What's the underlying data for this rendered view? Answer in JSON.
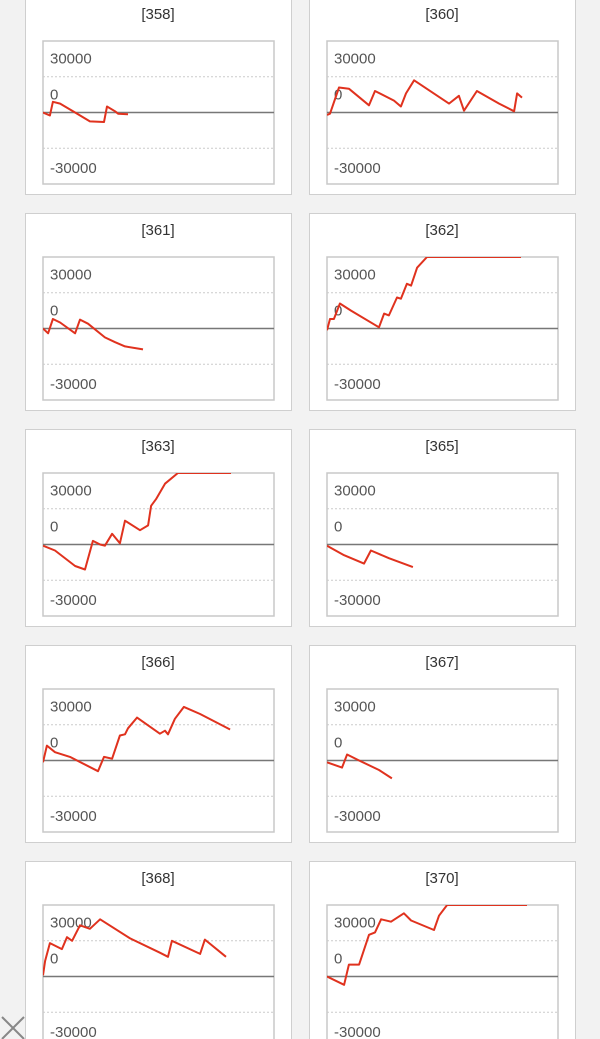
{
  "chart_data": [
    {
      "type": "line",
      "title": "[358]",
      "xlim": [
        0,
        100
      ],
      "ylim": [
        -60000,
        60000
      ],
      "yticks": [
        30000,
        0,
        -30000
      ],
      "color": "#e0321e",
      "x": [
        0,
        3,
        4.3,
        7.4,
        13.9,
        20.3,
        26.4,
        27.7,
        31.2,
        32.5,
        36.8
      ],
      "values": [
        0,
        -2500,
        9000,
        7500,
        0,
        -7500,
        -8000,
        5000,
        1000,
        -1000,
        -1500
      ]
    },
    {
      "type": "line",
      "title": "[360]",
      "xlim": [
        0,
        100
      ],
      "ylim": [
        -60000,
        60000
      ],
      "yticks": [
        30000,
        0,
        -30000
      ],
      "color": "#e0321e",
      "x": [
        0,
        1.3,
        5.2,
        9.5,
        18.2,
        20.8,
        29,
        32,
        34.2,
        37.7,
        52.8,
        57.1,
        59.3,
        64.9,
        74.5,
        81,
        82.3,
        84.4
      ],
      "values": [
        -2000,
        -1000,
        21000,
        20000,
        6000,
        18000,
        10000,
        5000,
        16000,
        27000,
        7500,
        14000,
        1500,
        18000,
        7500,
        1000,
        16000,
        12500
      ]
    },
    {
      "type": "line",
      "title": "[361]",
      "xlim": [
        0,
        100
      ],
      "ylim": [
        -60000,
        60000
      ],
      "yticks": [
        30000,
        0,
        -30000
      ],
      "color": "#e0321e",
      "x": [
        0,
        2.2,
        4.3,
        7.4,
        13.9,
        16,
        19.5,
        26.8,
        31.2,
        35.5,
        43.3
      ],
      "values": [
        0,
        -4000,
        8000,
        5000,
        -4000,
        7500,
        4000,
        -7500,
        -11500,
        -15000,
        -17500
      ]
    },
    {
      "type": "line",
      "title": "[362]",
      "xlim": [
        0,
        100
      ],
      "ylim": [
        -60000,
        60000
      ],
      "yticks": [
        30000,
        0,
        -30000
      ],
      "color": "#e0321e",
      "x": [
        0,
        1.3,
        3,
        5.6,
        10.4,
        22.5,
        24.7,
        26.8,
        30.3,
        32,
        34.6,
        36.4,
        39,
        43.3,
        84
      ],
      "values": [
        -1500,
        8000,
        8000,
        21000,
        15000,
        1000,
        12500,
        11000,
        26000,
        25000,
        37500,
        36000,
        51000,
        60000,
        60000
      ]
    },
    {
      "type": "line",
      "title": "[363]",
      "xlim": [
        0,
        100
      ],
      "ylim": [
        -60000,
        60000
      ],
      "yticks": [
        30000,
        0,
        -30000
      ],
      "color": "#e0321e",
      "x": [
        0,
        5.2,
        13.9,
        18.2,
        21.6,
        24.7,
        26.8,
        29.9,
        33.3,
        35.5,
        42,
        45.5,
        46.8,
        48.9,
        52.8,
        58.4,
        81.4
      ],
      "values": [
        -1000,
        -5000,
        -18000,
        -21000,
        3000,
        0,
        -1000,
        9000,
        1000,
        20000,
        12000,
        16000,
        32500,
        38000,
        51000,
        60000,
        60000
      ]
    },
    {
      "type": "line",
      "title": "[365]",
      "xlim": [
        0,
        100
      ],
      "ylim": [
        -60000,
        60000
      ],
      "yticks": [
        30000,
        0,
        -30000
      ],
      "color": "#e0321e",
      "x": [
        0,
        7.4,
        16,
        19,
        26.8,
        37.2
      ],
      "values": [
        -1000,
        -9000,
        -16000,
        -5000,
        -11500,
        -19000
      ]
    },
    {
      "type": "line",
      "title": "[366]",
      "xlim": [
        0,
        100
      ],
      "ylim": [
        -60000,
        60000
      ],
      "yticks": [
        30000,
        0,
        -30000
      ],
      "color": "#e0321e",
      "x": [
        0,
        1.7,
        5.2,
        11.7,
        23.8,
        26.4,
        29.9,
        33.3,
        35.5,
        36.8,
        40.7,
        50.6,
        52.8,
        54.1,
        57.1,
        61,
        68,
        81
      ],
      "values": [
        -1500,
        12500,
        7000,
        3000,
        -9000,
        3000,
        1500,
        21000,
        22000,
        27000,
        36000,
        22500,
        25000,
        22000,
        35000,
        45000,
        39000,
        26000
      ]
    },
    {
      "type": "line",
      "title": "[367]",
      "xlim": [
        0,
        100
      ],
      "ylim": [
        -60000,
        60000
      ],
      "yticks": [
        30000,
        0,
        -30000
      ],
      "color": "#e0321e",
      "x": [
        0,
        6.5,
        8.7,
        13.9,
        22.5,
        28.1
      ],
      "values": [
        -1500,
        -6000,
        5000,
        0,
        -8000,
        -15000
      ]
    },
    {
      "type": "line",
      "title": "[368]",
      "xlim": [
        0,
        100
      ],
      "ylim": [
        -60000,
        60000
      ],
      "yticks": [
        30000,
        0,
        -30000
      ],
      "color": "#e0321e",
      "x": [
        0,
        0.9,
        3,
        8.2,
        10.4,
        12.6,
        16,
        20.3,
        24.7,
        37.7,
        50.6,
        54.1,
        55.8,
        68,
        70.1,
        79.2
      ],
      "values": [
        1000,
        13000,
        28000,
        23000,
        33000,
        30000,
        43000,
        40000,
        48000,
        32000,
        20000,
        16500,
        30000,
        19000,
        31000,
        16500
      ]
    },
    {
      "type": "line",
      "title": "[370]",
      "xlim": [
        0,
        100
      ],
      "ylim": [
        -60000,
        60000
      ],
      "yticks": [
        30000,
        0,
        -30000
      ],
      "color": "#e0321e",
      "x": [
        0,
        7.4,
        9.5,
        13.9,
        18.2,
        20.8,
        23.4,
        27.7,
        33.3,
        36.4,
        46.3,
        48.5,
        52,
        86.6
      ],
      "values": [
        0,
        -7000,
        10000,
        10000,
        35000,
        37000,
        48000,
        46000,
        53000,
        47000,
        39000,
        51000,
        60000,
        60000
      ]
    }
  ]
}
